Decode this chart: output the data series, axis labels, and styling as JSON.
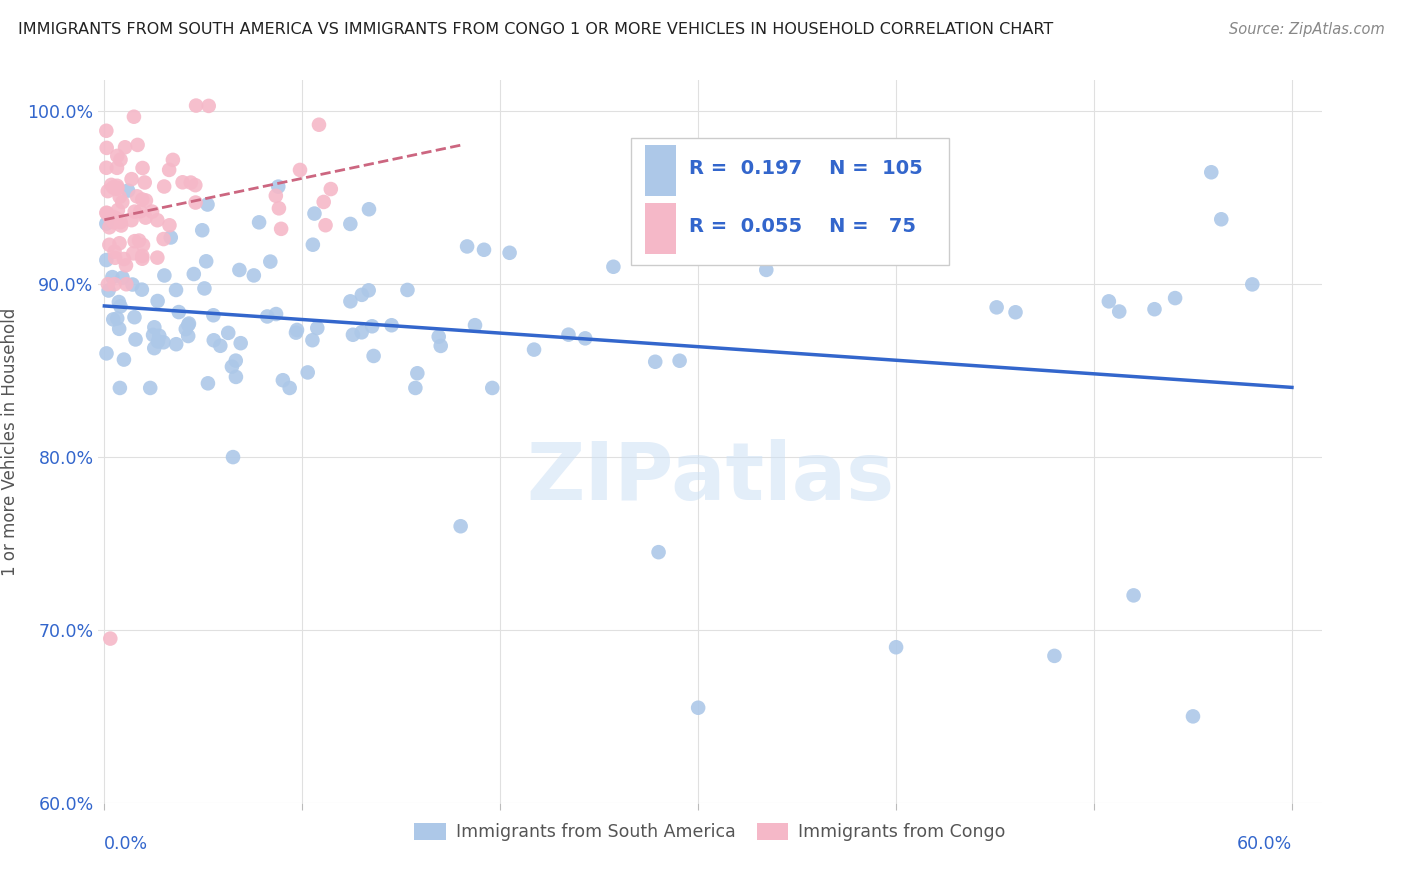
{
  "title": "IMMIGRANTS FROM SOUTH AMERICA VS IMMIGRANTS FROM CONGO 1 OR MORE VEHICLES IN HOUSEHOLD CORRELATION CHART",
  "source": "Source: ZipAtlas.com",
  "ylabel": "1 or more Vehicles in Household",
  "blue_color": "#adc8e8",
  "pink_color": "#f5b8c8",
  "blue_line_color": "#3366cc",
  "pink_line_color": "#cc6680",
  "legend_r_blue": "0.197",
  "legend_n_blue": "105",
  "legend_r_pink": "0.055",
  "legend_n_pink": "75",
  "watermark": "ZIPatlas",
  "legend_label_blue": "Immigrants from South America",
  "legend_label_pink": "Immigrants from Congo"
}
